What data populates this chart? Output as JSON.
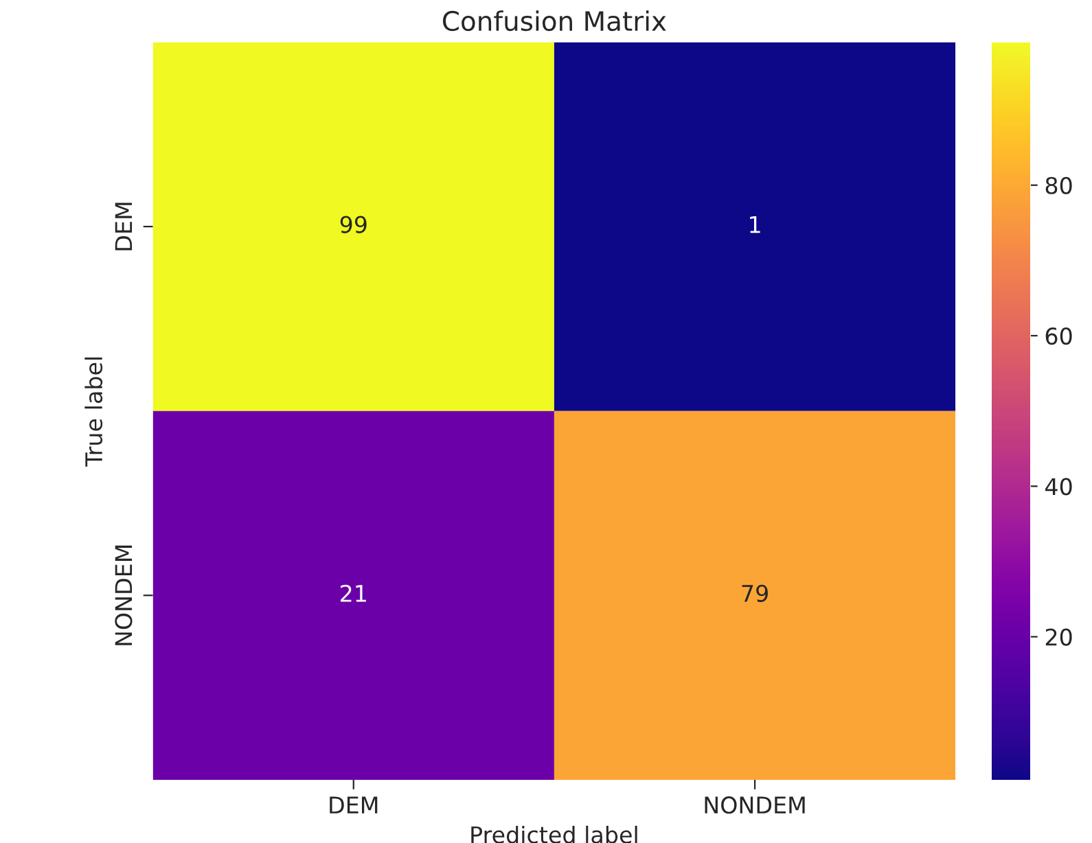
{
  "chart_data": {
    "type": "heatmap",
    "title": "Confusion Matrix",
    "xlabel": "Predicted label",
    "ylabel": "True label",
    "categories": [
      "DEM",
      "NONDEM"
    ],
    "y_categories": [
      "DEM",
      "NONDEM"
    ],
    "cells": [
      [
        99,
        1
      ],
      [
        21,
        79
      ]
    ],
    "clim": [
      1,
      99
    ],
    "cticks": [
      20,
      40,
      60,
      80
    ],
    "data_labels": true
  }
}
